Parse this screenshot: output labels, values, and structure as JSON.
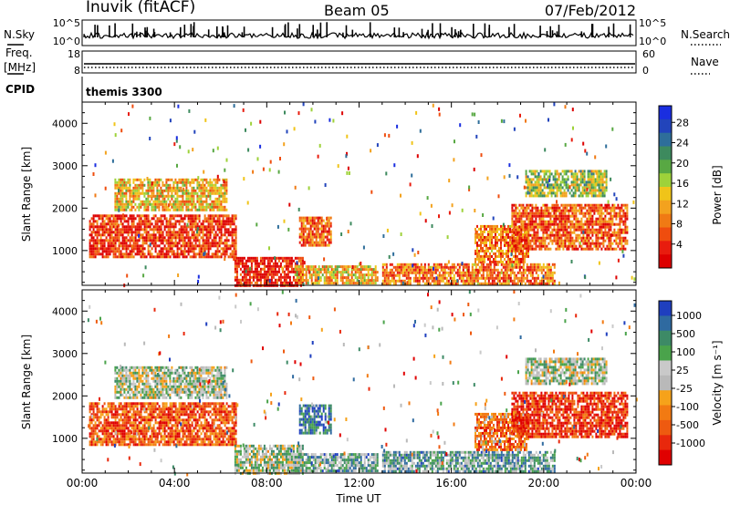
{
  "header": {
    "station": "Inuvik (fitACF)",
    "beam": "Beam 05",
    "date": "07/Feb/2012"
  },
  "top_panels": {
    "nsky_label": "N.Sky",
    "nsky_ticks": [
      "10^5",
      "10^0"
    ],
    "nsearch_label": "N.Search",
    "nsearch_ticks": [
      "10^5",
      "10^0"
    ],
    "freq_label_1": "Freq.",
    "freq_label_2": "[MHz]",
    "freq_ticks": [
      "18",
      "8"
    ],
    "nave_label": "Nave",
    "nave_ticks": [
      "60",
      "0"
    ],
    "cpid_label": "CPID",
    "cpid_value": "themis 3300"
  },
  "chart_data": [
    {
      "type": "heatmap",
      "panel": "power",
      "ylabel": "Slant Range [km]",
      "xlabel": "",
      "ylim": [
        180,
        4500
      ],
      "yticks": [
        "1000",
        "2000",
        "3000",
        "4000"
      ],
      "colorbar_label": "Power [dB]",
      "colorbar_ticks": [
        "4",
        "8",
        "12",
        "16",
        "20",
        "24",
        "28"
      ],
      "colorbar_colors": [
        "#1a2ee0",
        "#2244bb",
        "#2e6e9a",
        "#3d8a5e",
        "#58a843",
        "#9ed23a",
        "#f0c419",
        "#f3a21e",
        "#f07a14",
        "#ef4d0e",
        "#e81c0e",
        "#dd0000"
      ],
      "regions": [
        {
          "t": [
            0.3,
            6.7
          ],
          "r": [
            850,
            1850
          ],
          "level": 0.85
        },
        {
          "t": [
            1.4,
            6.3
          ],
          "r": [
            1950,
            2700
          ],
          "level": 0.6
        },
        {
          "t": [
            6.6,
            9.6
          ],
          "r": [
            200,
            850
          ],
          "level": 0.92
        },
        {
          "t": [
            9.4,
            10.8
          ],
          "r": [
            1100,
            1800
          ],
          "level": 0.75
        },
        {
          "t": [
            9.2,
            12.8
          ],
          "r": [
            200,
            650
          ],
          "level": 0.6
        },
        {
          "t": [
            13.0,
            20.5
          ],
          "r": [
            200,
            700
          ],
          "level": 0.72
        },
        {
          "t": [
            17.0,
            19.3
          ],
          "r": [
            700,
            1600
          ],
          "level": 0.72
        },
        {
          "t": [
            18.6,
            23.6
          ],
          "r": [
            1050,
            2100
          ],
          "level": 0.78
        },
        {
          "t": [
            19.2,
            22.7
          ],
          "r": [
            2300,
            2900
          ],
          "level": 0.45
        }
      ]
    },
    {
      "type": "heatmap",
      "panel": "velocity",
      "ylabel": "Slant Range [km]",
      "xlabel": "Time UT",
      "ylim": [
        180,
        4500
      ],
      "yticks": [
        "1000",
        "2000",
        "3000",
        "4000"
      ],
      "xticks": [
        "00:00",
        "04:00",
        "08:00",
        "12:00",
        "16:00",
        "20:00",
        "00:00"
      ],
      "colorbar_label": "Velocity [m s⁻¹]",
      "colorbar_ticks": [
        "1000",
        "500",
        "100",
        "25",
        "-25",
        "-100",
        "-500",
        "-1000"
      ],
      "colorbar_colors": [
        "#1f3fbf",
        "#2f6aa0",
        "#3d8a66",
        "#4aa34b",
        "#c9c9c9",
        "#b9b9b9",
        "#f6a21a",
        "#f27a12",
        "#ee5a10",
        "#e8280c",
        "#e00000"
      ],
      "regions": [
        {
          "t": [
            0.3,
            6.7
          ],
          "r": [
            850,
            1850
          ],
          "level": 0.78
        },
        {
          "t": [
            1.4,
            6.3
          ],
          "r": [
            1950,
            2700
          ],
          "level": 0.42
        },
        {
          "t": [
            6.6,
            9.6
          ],
          "r": [
            200,
            850
          ],
          "level": 0.42
        },
        {
          "t": [
            9.4,
            10.8
          ],
          "r": [
            1100,
            1800
          ],
          "level": 0.18
        },
        {
          "t": [
            9.2,
            12.8
          ],
          "r": [
            200,
            650
          ],
          "level": 0.3
        },
        {
          "t": [
            13.0,
            20.5
          ],
          "r": [
            200,
            700
          ],
          "level": 0.3
        },
        {
          "t": [
            17.0,
            19.3
          ],
          "r": [
            700,
            1600
          ],
          "level": 0.72
        },
        {
          "t": [
            18.6,
            23.6
          ],
          "r": [
            1050,
            2100
          ],
          "level": 0.88
        },
        {
          "t": [
            19.2,
            22.7
          ],
          "r": [
            2300,
            2900
          ],
          "level": 0.42
        }
      ]
    }
  ]
}
